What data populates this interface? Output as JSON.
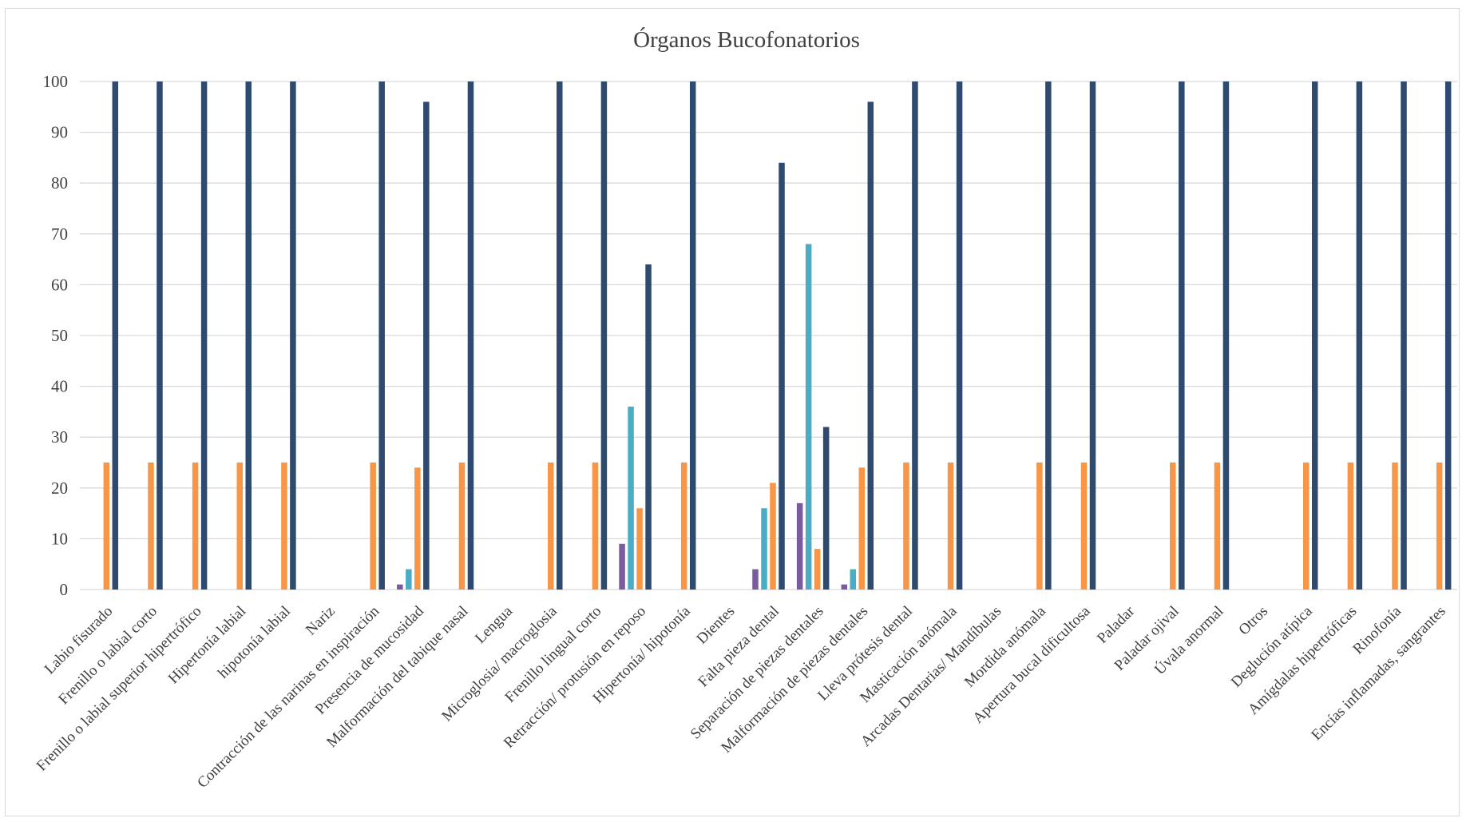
{
  "chart_data": {
    "type": "bar",
    "title": "Órganos Bucofonatorios",
    "xlabel": "",
    "ylabel": "",
    "ylim": [
      0,
      100
    ],
    "yticks": [
      0,
      10,
      20,
      30,
      40,
      50,
      60,
      70,
      80,
      90,
      100
    ],
    "grid": true,
    "legend": "none",
    "categories": [
      "Labio fisurado",
      "Frenillo o labial corto",
      "Frenillo o labial superior hipertrófico",
      "Hipertonía labial",
      "hipotonía labial",
      "Nariz",
      "Contracción de las narinas en inspiración",
      "Presencia de  mucosidad",
      "Malformación del tabique nasal",
      "Lengua",
      "Microglosia/ macroglosia",
      "Frenillo lingual corto",
      "Retracción/ protusión en reposo",
      "Hipertonía/ hipotonía",
      "Dientes",
      "Falta pieza dental",
      "Separación de piezas dentales",
      "Malformación de piezas dentales",
      "Lleva prótesis dental",
      "Masticación anómala",
      "Arcadas Dentarias/ Mandíbulas",
      "Mordida anómala",
      "Apertura bucal dificultosa",
      "Paladar",
      "Paladar ojival",
      "Úvala anormal",
      "Otros",
      "Deglución atípica",
      "Amígdalas hipertróficas",
      "Rinofonía",
      "Encías inflamadas, sangrantes"
    ],
    "series": [
      {
        "color": "#7a5c9e",
        "values": [
          0,
          0,
          0,
          0,
          0,
          0,
          0,
          1,
          0,
          0,
          0,
          0,
          9,
          0,
          0,
          4,
          17,
          1,
          0,
          0,
          0,
          0,
          0,
          0,
          0,
          0,
          0,
          0,
          0,
          0,
          0
        ]
      },
      {
        "color": "#4bacc6",
        "values": [
          0,
          0,
          0,
          0,
          0,
          0,
          0,
          4,
          0,
          0,
          0,
          0,
          36,
          0,
          0,
          16,
          68,
          4,
          0,
          0,
          0,
          0,
          0,
          0,
          0,
          0,
          0,
          0,
          0,
          0,
          0
        ]
      },
      {
        "color": "#f79646",
        "values": [
          25,
          25,
          25,
          25,
          25,
          0,
          25,
          24,
          25,
          0,
          25,
          25,
          16,
          25,
          0,
          21,
          8,
          24,
          25,
          25,
          0,
          25,
          25,
          0,
          25,
          25,
          0,
          25,
          25,
          25,
          25
        ]
      },
      {
        "color": "#2e4a6e",
        "values": [
          100,
          100,
          100,
          100,
          100,
          0,
          100,
          96,
          100,
          0,
          100,
          100,
          64,
          100,
          0,
          84,
          32,
          96,
          100,
          100,
          0,
          100,
          100,
          0,
          100,
          100,
          0,
          100,
          100,
          100,
          100
        ]
      }
    ],
    "colors": {
      "gridline": "#d9d9d9",
      "axis_text": "#404040",
      "frame_border": "#d9d9d9"
    }
  }
}
